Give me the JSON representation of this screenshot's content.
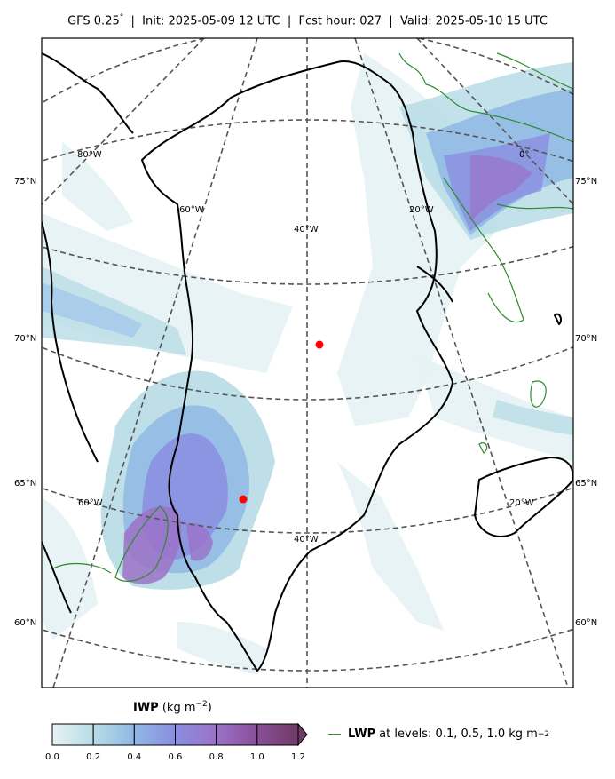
{
  "title": {
    "model": "GFS 0.25",
    "degree": "°",
    "init": "Init: 2025-05-09 12 UTC",
    "fcst": "Fcst hour: 027",
    "valid": "Valid: 2025-05-10 15 UTC",
    "sep": "|"
  },
  "map": {
    "lat_left": [
      "75°N",
      "70°N",
      "65°N",
      "60°N"
    ],
    "lat_right": [
      "75°N",
      "70°N",
      "65°N",
      "60°N"
    ],
    "lon_labels": [
      "80°W",
      "60°W",
      "40°W",
      "20°W",
      "0°",
      "60°W",
      "40°W",
      "20°W"
    ],
    "markers": [
      "red-dot-1",
      "red-dot-2"
    ],
    "colors": {
      "coast": "#000000",
      "graticule": "#555555",
      "lwp": "#2e8b2e",
      "marker": "#ff0000"
    }
  },
  "colorbar": {
    "name": "IWP",
    "units": "(kg m",
    "exp": "−2",
    "close": ")",
    "ticks": [
      "0.0",
      "0.2",
      "0.4",
      "0.6",
      "0.8",
      "1.0",
      "1.2"
    ],
    "colors": [
      "#e6f2f4",
      "#b8dce6",
      "#8fb8e4",
      "#8a8ee0",
      "#9b72c8",
      "#8a4f98",
      "#6e3a66"
    ]
  },
  "legend": {
    "name": "LWP",
    "text": "at levels: 0.1, 0.5, 1.0  kg m",
    "exp": "−2"
  }
}
